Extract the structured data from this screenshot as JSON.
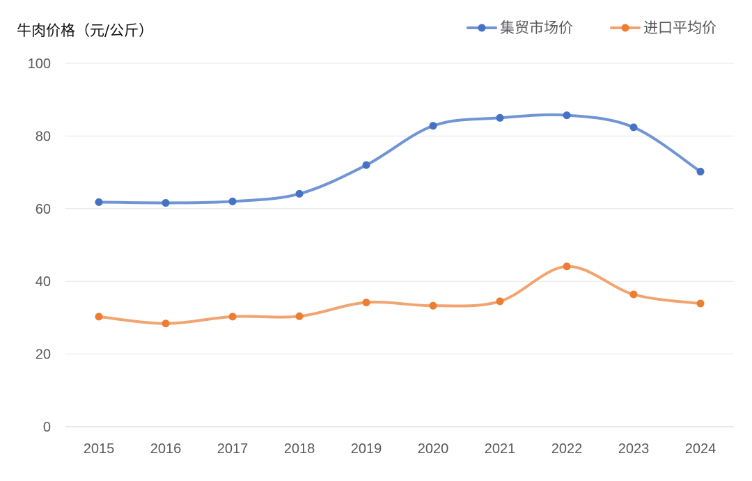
{
  "chart_data": {
    "type": "line",
    "title": "",
    "ylabel": "牛肉价格（元/公斤）",
    "xlabel": "",
    "categories": [
      "2015",
      "2016",
      "2017",
      "2018",
      "2019",
      "2020",
      "2021",
      "2022",
      "2023",
      "2024"
    ],
    "ylim": [
      0,
      100
    ],
    "yticks": [
      "0",
      "20",
      "40",
      "60",
      "80",
      "100"
    ],
    "grid": true,
    "legend_position": "top-right",
    "series": [
      {
        "name": "集贸市场价",
        "color": "#4472C4",
        "line_color": "#7094D4",
        "values": [
          61.8,
          61.6,
          62.0,
          64.1,
          72.0,
          82.8,
          85.0,
          85.7,
          82.4,
          70.2
        ]
      },
      {
        "name": "进口平均价",
        "color": "#ED7D31",
        "line_color": "#F2A470",
        "values": [
          30.3,
          28.4,
          30.3,
          30.4,
          34.2,
          33.3,
          34.5,
          44.1,
          36.4,
          33.9
        ]
      }
    ]
  }
}
